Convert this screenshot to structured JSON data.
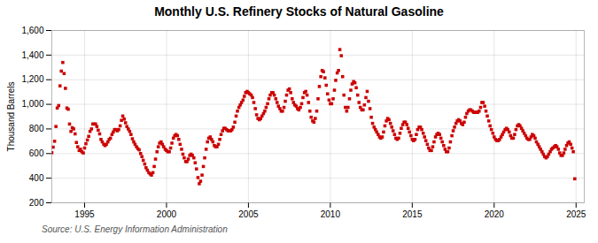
{
  "chart_data": {
    "type": "scatter",
    "title": "Monthly U.S. Refinery Stocks of Natural Gasoline",
    "ylabel": "Thousand Barrels",
    "caption": "Source: U.S. Energy Information Administration",
    "color": "#cc0000",
    "marker": "square",
    "grid": true,
    "xlim": [
      1993.0,
      2025.5
    ],
    "xticks": [
      1995,
      2000,
      2005,
      2010,
      2015,
      2020,
      2025
    ],
    "ylim": [
      200,
      1600
    ],
    "yticks": [
      200,
      400,
      600,
      800,
      {
        "value": 1000,
        "label": "1,000"
      },
      {
        "value": 1200,
        "label": "1,200"
      },
      {
        "value": 1400,
        "label": "1,400"
      },
      {
        "value": 1600,
        "label": "1,600"
      }
    ],
    "x": [
      1993.0,
      1993.08,
      1993.17,
      1993.25,
      1993.33,
      1993.42,
      1993.5,
      1993.58,
      1993.67,
      1993.75,
      1993.83,
      1993.92,
      1994.0,
      1994.08,
      1994.17,
      1994.25,
      1994.33,
      1994.42,
      1994.5,
      1994.58,
      1994.67,
      1994.75,
      1994.83,
      1994.92,
      1995.0,
      1995.08,
      1995.17,
      1995.25,
      1995.33,
      1995.42,
      1995.5,
      1995.58,
      1995.67,
      1995.75,
      1995.83,
      1995.92,
      1996.0,
      1996.08,
      1996.17,
      1996.25,
      1996.33,
      1996.42,
      1996.5,
      1996.58,
      1996.67,
      1996.75,
      1996.83,
      1996.92,
      1997.0,
      1997.08,
      1997.17,
      1997.25,
      1997.33,
      1997.42,
      1997.5,
      1997.58,
      1997.67,
      1997.75,
      1997.83,
      1997.92,
      1998.0,
      1998.08,
      1998.17,
      1998.25,
      1998.33,
      1998.42,
      1998.5,
      1998.58,
      1998.67,
      1998.75,
      1998.83,
      1998.92,
      1999.0,
      1999.08,
      1999.17,
      1999.25,
      1999.33,
      1999.42,
      1999.5,
      1999.58,
      1999.67,
      1999.75,
      1999.83,
      1999.92,
      2000.0,
      2000.08,
      2000.17,
      2000.25,
      2000.33,
      2000.42,
      2000.5,
      2000.58,
      2000.67,
      2000.75,
      2000.83,
      2000.92,
      2001.0,
      2001.08,
      2001.17,
      2001.25,
      2001.33,
      2001.42,
      2001.5,
      2001.58,
      2001.67,
      2001.75,
      2001.83,
      2001.92,
      2002.0,
      2002.08,
      2002.17,
      2002.25,
      2002.33,
      2002.42,
      2002.5,
      2002.58,
      2002.67,
      2002.75,
      2002.83,
      2002.92,
      2003.0,
      2003.08,
      2003.17,
      2003.25,
      2003.33,
      2003.42,
      2003.5,
      2003.58,
      2003.67,
      2003.75,
      2003.83,
      2003.92,
      2004.0,
      2004.08,
      2004.17,
      2004.25,
      2004.33,
      2004.42,
      2004.5,
      2004.58,
      2004.67,
      2004.75,
      2004.83,
      2004.92,
      2005.0,
      2005.08,
      2005.17,
      2005.25,
      2005.33,
      2005.42,
      2005.5,
      2005.58,
      2005.67,
      2005.75,
      2005.83,
      2005.92,
      2006.0,
      2006.08,
      2006.17,
      2006.25,
      2006.33,
      2006.42,
      2006.5,
      2006.58,
      2006.67,
      2006.75,
      2006.83,
      2006.92,
      2007.0,
      2007.08,
      2007.17,
      2007.25,
      2007.33,
      2007.42,
      2007.5,
      2007.58,
      2007.67,
      2007.75,
      2007.83,
      2007.92,
      2008.0,
      2008.08,
      2008.17,
      2008.25,
      2008.33,
      2008.42,
      2008.5,
      2008.58,
      2008.67,
      2008.75,
      2008.83,
      2008.92,
      2009.0,
      2009.08,
      2009.17,
      2009.25,
      2009.33,
      2009.42,
      2009.5,
      2009.58,
      2009.67,
      2009.75,
      2009.83,
      2009.92,
      2010.0,
      2010.08,
      2010.17,
      2010.25,
      2010.33,
      2010.42,
      2010.5,
      2010.58,
      2010.67,
      2010.75,
      2010.83,
      2010.92,
      2011.0,
      2011.08,
      2011.17,
      2011.25,
      2011.33,
      2011.42,
      2011.5,
      2011.58,
      2011.67,
      2011.75,
      2011.83,
      2011.92,
      2012.0,
      2012.08,
      2012.17,
      2012.25,
      2012.33,
      2012.42,
      2012.5,
      2012.58,
      2012.67,
      2012.75,
      2012.83,
      2012.92,
      2013.0,
      2013.08,
      2013.17,
      2013.25,
      2013.33,
      2013.42,
      2013.5,
      2013.58,
      2013.67,
      2013.75,
      2013.83,
      2013.92,
      2014.0,
      2014.08,
      2014.17,
      2014.25,
      2014.33,
      2014.42,
      2014.5,
      2014.58,
      2014.67,
      2014.75,
      2014.83,
      2014.92,
      2015.0,
      2015.08,
      2015.17,
      2015.25,
      2015.33,
      2015.42,
      2015.5,
      2015.58,
      2015.67,
      2015.75,
      2015.83,
      2015.92,
      2016.0,
      2016.08,
      2016.17,
      2016.25,
      2016.33,
      2016.42,
      2016.5,
      2016.58,
      2016.67,
      2016.75,
      2016.83,
      2016.92,
      2017.0,
      2017.08,
      2017.17,
      2017.25,
      2017.33,
      2017.42,
      2017.5,
      2017.58,
      2017.67,
      2017.75,
      2017.83,
      2017.92,
      2018.0,
      2018.08,
      2018.17,
      2018.25,
      2018.33,
      2018.42,
      2018.5,
      2018.58,
      2018.67,
      2018.75,
      2018.83,
      2018.92,
      2019.0,
      2019.08,
      2019.17,
      2019.25,
      2019.33,
      2019.42,
      2019.5,
      2019.58,
      2019.67,
      2019.75,
      2019.83,
      2019.92,
      2020.0,
      2020.08,
      2020.17,
      2020.25,
      2020.33,
      2020.42,
      2020.5,
      2020.58,
      2020.67,
      2020.75,
      2020.83,
      2020.92,
      2021.0,
      2021.08,
      2021.17,
      2021.25,
      2021.33,
      2021.42,
      2021.5,
      2021.58,
      2021.67,
      2021.75,
      2021.83,
      2021.92,
      2022.0,
      2022.08,
      2022.17,
      2022.25,
      2022.33,
      2022.42,
      2022.5,
      2022.58,
      2022.67,
      2022.75,
      2022.83,
      2022.92,
      2023.0,
      2023.08,
      2023.17,
      2023.25,
      2023.33,
      2023.42,
      2023.5,
      2023.58,
      2023.67,
      2023.75,
      2023.83,
      2023.92,
      2024.0,
      2024.08,
      2024.17,
      2024.25,
      2024.33,
      2024.42,
      2024.5,
      2024.58,
      2024.67,
      2024.75,
      2024.83,
      2024.92
    ],
    "values": [
      607,
      652,
      700,
      820,
      970,
      990,
      1150,
      1270,
      1340,
      1250,
      1130,
      970,
      960,
      840,
      780,
      810,
      800,
      760,
      690,
      655,
      625,
      635,
      615,
      605,
      645,
      680,
      710,
      740,
      780,
      800,
      840,
      840,
      840,
      820,
      790,
      760,
      715,
      695,
      675,
      665,
      675,
      695,
      715,
      725,
      755,
      775,
      795,
      795,
      785,
      795,
      825,
      870,
      905,
      880,
      850,
      820,
      800,
      780,
      755,
      720,
      695,
      675,
      655,
      640,
      630,
      600,
      575,
      545,
      515,
      485,
      465,
      445,
      435,
      425,
      445,
      495,
      555,
      615,
      655,
      685,
      695,
      675,
      655,
      635,
      625,
      615,
      615,
      645,
      685,
      725,
      745,
      755,
      745,
      715,
      675,
      635,
      595,
      565,
      535,
      535,
      555,
      585,
      595,
      585,
      565,
      525,
      475,
      405,
      355,
      375,
      425,
      495,
      565,
      635,
      695,
      725,
      735,
      715,
      695,
      665,
      655,
      655,
      675,
      715,
      755,
      785,
      805,
      805,
      795,
      785,
      785,
      785,
      795,
      815,
      855,
      905,
      945,
      975,
      995,
      1015,
      1035,
      1065,
      1095,
      1105,
      1095,
      1085,
      1075,
      1055,
      1015,
      965,
      915,
      885,
      875,
      885,
      905,
      925,
      945,
      975,
      1005,
      1045,
      1075,
      1095,
      1095,
      1075,
      1045,
      1015,
      985,
      965,
      945,
      945,
      975,
      1025,
      1075,
      1115,
      1125,
      1095,
      1045,
      1015,
      995,
      985,
      965,
      955,
      975,
      1005,
      1055,
      1095,
      1105,
      1075,
      1015,
      945,
      895,
      865,
      855,
      885,
      945,
      1045,
      1145,
      1225,
      1275,
      1265,
      1215,
      1155,
      1085,
      1035,
      1005,
      1005,
      1045,
      1115,
      1195,
      1255,
      1275,
      1445,
      1395,
      1225,
      1075,
      975,
      945,
      975,
      1045,
      1115,
      1165,
      1185,
      1175,
      1135,
      1075,
      1015,
      975,
      955,
      955,
      995,
      1055,
      1105,
      1025,
      965,
      895,
      845,
      815,
      795,
      775,
      755,
      735,
      725,
      735,
      775,
      825,
      865,
      885,
      875,
      845,
      815,
      785,
      755,
      725,
      715,
      725,
      765,
      805,
      835,
      855,
      855,
      835,
      805,
      775,
      745,
      715,
      705,
      715,
      755,
      795,
      815,
      815,
      795,
      765,
      735,
      705,
      675,
      645,
      625,
      625,
      655,
      695,
      735,
      755,
      765,
      755,
      725,
      695,
      665,
      635,
      615,
      615,
      645,
      695,
      745,
      785,
      815,
      845,
      865,
      875,
      865,
      845,
      835,
      855,
      895,
      925,
      945,
      955,
      955,
      945,
      935,
      935,
      935,
      935,
      945,
      975,
      1015,
      1015,
      985,
      945,
      905,
      865,
      825,
      795,
      765,
      735,
      715,
      705,
      705,
      715,
      735,
      755,
      775,
      795,
      805,
      795,
      775,
      745,
      725,
      725,
      755,
      795,
      825,
      835,
      825,
      805,
      785,
      765,
      745,
      725,
      715,
      715,
      735,
      755,
      745,
      725,
      695,
      675,
      655,
      635,
      615,
      595,
      575,
      565,
      575,
      595,
      615,
      635,
      645,
      655,
      665,
      655,
      635,
      605,
      585,
      585,
      605,
      635,
      665,
      685,
      695,
      675,
      645,
      615,
      395
    ]
  }
}
